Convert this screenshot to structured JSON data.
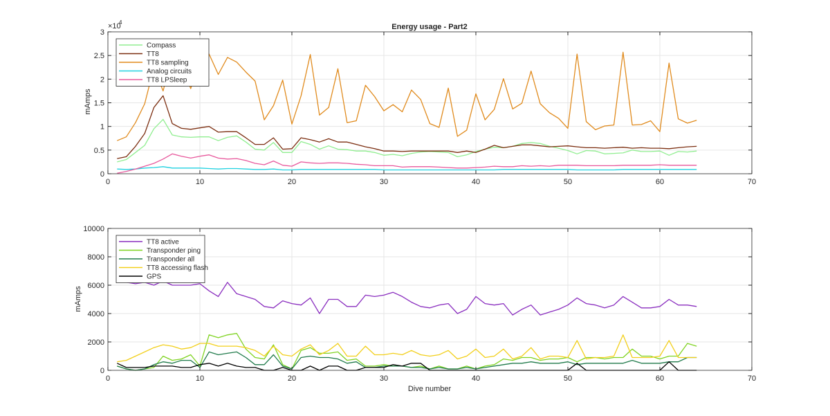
{
  "chart_data": [
    {
      "type": "line",
      "title": "Energy usage - Part2",
      "xlabel": "",
      "ylabel": "mAmps",
      "xlim": [
        0,
        70
      ],
      "ylim": [
        0,
        30000
      ],
      "x_ticks": [
        0,
        10,
        20,
        30,
        40,
        50,
        60,
        70
      ],
      "y_ticks": [
        0,
        5000,
        10000,
        15000,
        20000,
        25000,
        30000
      ],
      "y_tick_labels": [
        "0",
        "0.5",
        "1",
        "1.5",
        "2",
        "2.5",
        "3"
      ],
      "y_exponent": {
        "base": "×10",
        "power": "4"
      },
      "grid": true,
      "legend_position": "top-left",
      "x": [
        1,
        2,
        3,
        4,
        5,
        6,
        7,
        8,
        9,
        10,
        11,
        12,
        13,
        14,
        15,
        16,
        17,
        18,
        19,
        20,
        21,
        22,
        23,
        24,
        25,
        26,
        27,
        28,
        29,
        30,
        31,
        32,
        33,
        34,
        35,
        36,
        37,
        38,
        39,
        40,
        41,
        42,
        43,
        44,
        45,
        46,
        47,
        48,
        49,
        50,
        51,
        52,
        53,
        54,
        55,
        56,
        57,
        58,
        59,
        60,
        61,
        62,
        63,
        64
      ],
      "series": [
        {
          "name": "Compass",
          "color": "#90ee90",
          "values": [
            2500,
            3000,
            4500,
            6000,
            9500,
            11500,
            8200,
            7800,
            7700,
            7800,
            7800,
            7000,
            7700,
            8000,
            6700,
            5200,
            5000,
            6600,
            4500,
            4500,
            6800,
            6200,
            5200,
            5900,
            5200,
            5100,
            4800,
            4800,
            4500,
            3900,
            4100,
            3800,
            4300,
            4600,
            4700,
            4600,
            4500,
            3600,
            4000,
            4700,
            5200,
            5600,
            5500,
            5800,
            6400,
            6600,
            6400,
            5800,
            5400,
            4900,
            4200,
            4900,
            4800,
            4200,
            4300,
            4400,
            5000,
            4700,
            4700,
            4800,
            3900,
            4700,
            4600,
            4800
          ]
        },
        {
          "name": "TT8",
          "color": "#7b2d0f",
          "values": [
            3200,
            3600,
            5800,
            8500,
            14000,
            16500,
            10600,
            9600,
            9400,
            9700,
            10000,
            8800,
            8900,
            8900,
            7600,
            6200,
            6200,
            7600,
            5200,
            5300,
            7600,
            7200,
            6700,
            7400,
            6700,
            6700,
            6200,
            5700,
            5300,
            4800,
            4800,
            4700,
            4800,
            4800,
            4800,
            4800,
            4800,
            4500,
            4800,
            4500,
            5200,
            6000,
            5500,
            5800,
            6100,
            6100,
            5900,
            5700,
            5800,
            5900,
            5700,
            5500,
            5500,
            5400,
            5500,
            5600,
            5400,
            5500,
            5400,
            5400,
            5300,
            5500,
            5700,
            5800
          ]
        },
        {
          "name": "TT8 sampling",
          "color": "#e08a1c",
          "values": [
            7000,
            7800,
            10800,
            14800,
            22500,
            17500,
            25000,
            23500,
            18000,
            23800,
            25300,
            21000,
            24600,
            23600,
            21500,
            19600,
            11400,
            14400,
            19800,
            10500,
            16500,
            25200,
            12400,
            14000,
            22200,
            10800,
            11200,
            18700,
            16300,
            13300,
            14600,
            13100,
            17700,
            15700,
            10600,
            9800,
            18100,
            7900,
            9200,
            16900,
            11400,
            13600,
            20100,
            13700,
            14900,
            21700,
            14800,
            12900,
            11700,
            9600,
            25300,
            11000,
            9300,
            10100,
            10300,
            25700,
            10300,
            10400,
            11200,
            8900,
            23400,
            11600,
            10700,
            11300
          ]
        },
        {
          "name": "Analog circuits",
          "color": "#1fd1e0",
          "values": [
            1000,
            900,
            1000,
            1200,
            1300,
            1500,
            1200,
            1200,
            1200,
            1200,
            1100,
            1000,
            1100,
            1100,
            1000,
            900,
            900,
            1000,
            800,
            800,
            900,
            900,
            900,
            900,
            900,
            900,
            900,
            900,
            900,
            800,
            800,
            800,
            800,
            800,
            800,
            800,
            800,
            800,
            800,
            800,
            800,
            800,
            900,
            900,
            900,
            900,
            900,
            900,
            900,
            900,
            800,
            800,
            800,
            800,
            800,
            900,
            900,
            900,
            900,
            900,
            900,
            900,
            900,
            900
          ]
        },
        {
          "name": "TT8 LPSleep",
          "color": "#e8589c",
          "values": [
            100,
            500,
            1000,
            1600,
            2200,
            3100,
            4200,
            3700,
            3300,
            3700,
            4000,
            3300,
            3100,
            3200,
            2800,
            2200,
            1900,
            2700,
            1800,
            1600,
            2500,
            2300,
            2200,
            2300,
            2300,
            2200,
            2000,
            1900,
            1700,
            1700,
            1700,
            1400,
            1500,
            1500,
            1500,
            1400,
            1300,
            1200,
            1200,
            1300,
            1400,
            1600,
            1500,
            1500,
            1700,
            1600,
            1700,
            1600,
            1800,
            1800,
            1800,
            1700,
            1700,
            1700,
            1700,
            1800,
            1800,
            1800,
            1800,
            1900,
            1800,
            1800,
            1800,
            1800
          ]
        }
      ]
    },
    {
      "type": "line",
      "title": "",
      "xlabel": "Dive number",
      "ylabel": "mAmps",
      "xlim": [
        0,
        70
      ],
      "ylim": [
        0,
        10000
      ],
      "x_ticks": [
        0,
        10,
        20,
        30,
        40,
        50,
        60,
        70
      ],
      "y_ticks": [
        0,
        2000,
        4000,
        6000,
        8000,
        10000
      ],
      "y_tick_labels": [
        "0",
        "2000",
        "4000",
        "6000",
        "8000",
        "10000"
      ],
      "grid": true,
      "legend_position": "top-left",
      "x": [
        1,
        2,
        3,
        4,
        5,
        6,
        7,
        8,
        9,
        10,
        11,
        12,
        13,
        14,
        15,
        16,
        17,
        18,
        19,
        20,
        21,
        22,
        23,
        24,
        25,
        26,
        27,
        28,
        29,
        30,
        31,
        32,
        33,
        34,
        35,
        36,
        37,
        38,
        39,
        40,
        41,
        42,
        43,
        44,
        45,
        46,
        47,
        48,
        49,
        50,
        51,
        52,
        53,
        54,
        55,
        56,
        57,
        58,
        59,
        60,
        61,
        62,
        63,
        64
      ],
      "series": [
        {
          "name": "TT8 active",
          "color": "#8a2ebf",
          "values": [
            6200,
            6200,
            6100,
            6200,
            6000,
            6300,
            6000,
            6000,
            6000,
            6100,
            5600,
            5200,
            6200,
            5400,
            5200,
            5000,
            4500,
            4400,
            4900,
            4700,
            4600,
            5100,
            4000,
            5000,
            5000,
            4500,
            4500,
            5300,
            5200,
            5300,
            5500,
            5200,
            4800,
            4500,
            4400,
            4600,
            4700,
            4000,
            4300,
            5200,
            4700,
            4600,
            4700,
            3900,
            4300,
            4600,
            3900,
            4100,
            4300,
            4600,
            5100,
            4700,
            4600,
            4400,
            4600,
            5200,
            4800,
            4400,
            4400,
            4500,
            5000,
            4600,
            4600,
            4500
          ]
        },
        {
          "name": "Transponder ping",
          "color": "#7fd321",
          "values": [
            300,
            100,
            0,
            100,
            200,
            1000,
            700,
            800,
            1100,
            300,
            2500,
            2300,
            2500,
            2600,
            1500,
            900,
            800,
            1800,
            400,
            100,
            1400,
            1600,
            1200,
            1200,
            1300,
            700,
            800,
            300,
            300,
            400,
            300,
            300,
            200,
            300,
            100,
            300,
            100,
            100,
            300,
            100,
            300,
            400,
            800,
            700,
            900,
            900,
            700,
            800,
            800,
            900,
            600,
            900,
            900,
            800,
            900,
            900,
            1500,
            1000,
            1000,
            800,
            1000,
            1000,
            1900,
            1700
          ]
        },
        {
          "name": "Transponder all",
          "color": "#1f7a4a",
          "values": [
            300,
            100,
            0,
            100,
            400,
            600,
            500,
            700,
            700,
            200,
            1300,
            1100,
            1200,
            1300,
            900,
            400,
            400,
            1100,
            300,
            100,
            900,
            1000,
            900,
            900,
            800,
            500,
            600,
            200,
            200,
            300,
            300,
            300,
            200,
            200,
            100,
            200,
            100,
            100,
            200,
            100,
            200,
            300,
            400,
            500,
            500,
            600,
            500,
            500,
            500,
            600,
            400,
            500,
            500,
            500,
            500,
            500,
            700,
            500,
            500,
            500,
            600,
            600,
            900,
            900
          ]
        },
        {
          "name": "TT8 accessing flash",
          "color": "#f2cf1a",
          "values": [
            600,
            700,
            1000,
            1300,
            1600,
            1800,
            1700,
            1500,
            1600,
            1900,
            1900,
            1700,
            1700,
            1700,
            1600,
            1400,
            1000,
            1700,
            1100,
            1000,
            1500,
            1800,
            1100,
            1400,
            1900,
            1000,
            1000,
            1700,
            1100,
            1100,
            1200,
            1100,
            1400,
            1100,
            1000,
            1100,
            1400,
            800,
            1000,
            1500,
            900,
            1000,
            1500,
            800,
            1000,
            1600,
            800,
            1000,
            1000,
            900,
            2100,
            800,
            900,
            900,
            1000,
            2500,
            900,
            900,
            900,
            1000,
            2100,
            900,
            900,
            900
          ]
        },
        {
          "name": "GPS",
          "color": "#000000",
          "values": [
            500,
            200,
            200,
            200,
            300,
            300,
            300,
            200,
            200,
            400,
            500,
            300,
            500,
            300,
            200,
            200,
            0,
            0,
            200,
            0,
            0,
            300,
            0,
            300,
            300,
            0,
            0,
            200,
            200,
            200,
            400,
            300,
            500,
            500,
            0,
            0,
            0,
            0,
            0,
            0,
            0,
            0,
            0,
            0,
            0,
            0,
            0,
            0,
            0,
            0,
            500,
            0,
            0,
            0,
            0,
            0,
            0,
            0,
            0,
            0,
            600,
            0,
            0,
            0
          ]
        }
      ]
    }
  ]
}
